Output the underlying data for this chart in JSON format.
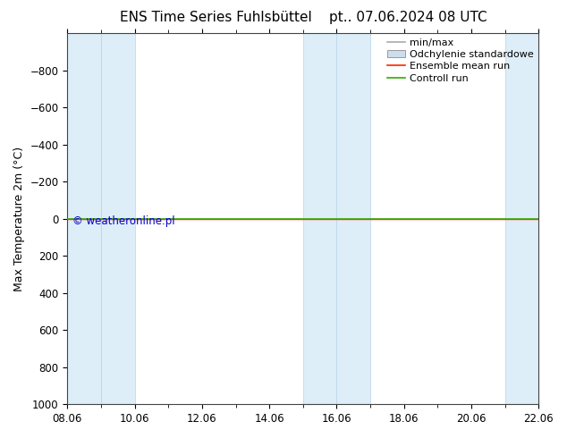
{
  "title": "ENS Time Series Fuhlsbüttel",
  "title2": "pt.. 07.06.2024 08 UTC",
  "ylabel": "Max Temperature 2m (°C)",
  "watermark": "© weatheronline.pl",
  "ylim": [
    1000,
    -1000
  ],
  "yticks": [
    -800,
    -600,
    -400,
    -200,
    0,
    200,
    400,
    600,
    800,
    1000
  ],
  "x_start": "2024-06-08",
  "x_end": "2024-06-22",
  "total_days": 14,
  "x_tick_labels": [
    "08.06",
    "10.06",
    "12.06",
    "14.06",
    "16.06",
    "18.06",
    "20.06",
    "22.06"
  ],
  "x_tick_days": [
    0,
    2,
    4,
    6,
    8,
    10,
    12,
    14
  ],
  "shaded_x_ranges": [
    [
      0,
      1
    ],
    [
      1,
      2
    ],
    [
      7,
      8
    ],
    [
      8,
      9
    ],
    [
      13,
      14
    ]
  ],
  "green_line_y": 0,
  "red_line_y": 0,
  "band_color": "#ddeef8",
  "band_border_color": "#b8d4e8",
  "green_line_color": "#33aa00",
  "red_line_color": "#ff2200",
  "min_max_color": "#aaaaaa",
  "std_color": "#ccddee",
  "background_color": "#ffffff",
  "legend_entries": [
    "min/max",
    "Odchylenie standardowe",
    "Ensemble mean run",
    "Controll run"
  ],
  "title_fontsize": 11,
  "axis_fontsize": 9,
  "tick_fontsize": 8.5,
  "legend_fontsize": 8
}
